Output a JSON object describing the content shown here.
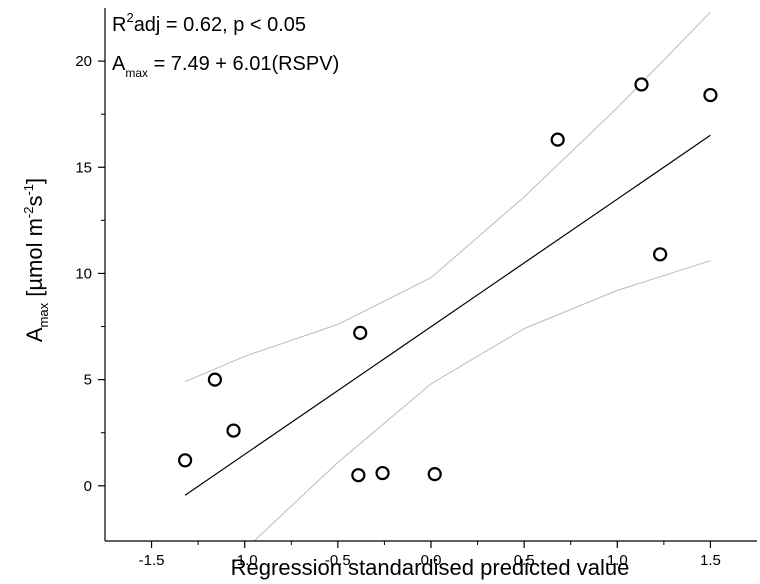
{
  "chart_data": {
    "type": "scatter",
    "xlabel": "Regression standardised predicted value",
    "ylabel": {
      "prefix": "A",
      "sub": "max",
      "text_1": " [µmol m",
      "sup_1": "-2",
      "text_2": "s",
      "sup_2": "-1",
      "text_3": "]"
    },
    "annotations": {
      "r2": {
        "prefix": "R",
        "sup": "2",
        "text": "adj = 0.62, p < 0.05"
      },
      "equation": {
        "prefix": "A",
        "sub": "max",
        "text": " = 7.49 + 6.01(RSPV)"
      }
    },
    "xlim": [
      -1.75,
      1.75
    ],
    "ylim": [
      -2.6,
      22.5
    ],
    "x_ticks": [
      -1.5,
      -1.0,
      -0.5,
      0.0,
      0.5,
      1.0,
      1.5
    ],
    "x_tick_labels": [
      "-1.5",
      "-1.0",
      "-0.5",
      "0.0",
      "0.5",
      "1.0",
      "1.5"
    ],
    "y_ticks": [
      0,
      5,
      10,
      15,
      20
    ],
    "y_tick_labels": [
      "0",
      "5",
      "10",
      "15",
      "20"
    ],
    "grid": false,
    "points": [
      {
        "x": -1.32,
        "y": 1.2
      },
      {
        "x": -1.16,
        "y": 5.0
      },
      {
        "x": -1.06,
        "y": 2.6
      },
      {
        "x": -0.39,
        "y": 0.5
      },
      {
        "x": -0.38,
        "y": 7.2
      },
      {
        "x": -0.26,
        "y": 0.6
      },
      {
        "x": 0.02,
        "y": 0.55
      },
      {
        "x": 0.68,
        "y": 16.3
      },
      {
        "x": 1.13,
        "y": 18.9
      },
      {
        "x": 1.23,
        "y": 10.9
      },
      {
        "x": 1.5,
        "y": 18.4
      }
    ],
    "regression": {
      "intercept": 7.49,
      "slope": 6.01,
      "x_range": [
        -1.32,
        1.5
      ],
      "color": "#000000"
    },
    "confidence_band": {
      "color": "#bbbbbb",
      "upper": [
        [
          -1.32,
          4.9
        ],
        [
          -1.0,
          6.1
        ],
        [
          -0.5,
          7.6
        ],
        [
          0.0,
          9.8
        ],
        [
          0.5,
          13.6
        ],
        [
          1.0,
          17.8
        ],
        [
          1.5,
          22.3
        ]
      ],
      "lower": [
        [
          -0.95,
          -2.6
        ],
        [
          -0.5,
          1.1
        ],
        [
          0.0,
          4.8
        ],
        [
          0.5,
          7.4
        ],
        [
          1.0,
          9.2
        ],
        [
          1.5,
          10.6
        ]
      ]
    },
    "marker_color": "#000000"
  }
}
